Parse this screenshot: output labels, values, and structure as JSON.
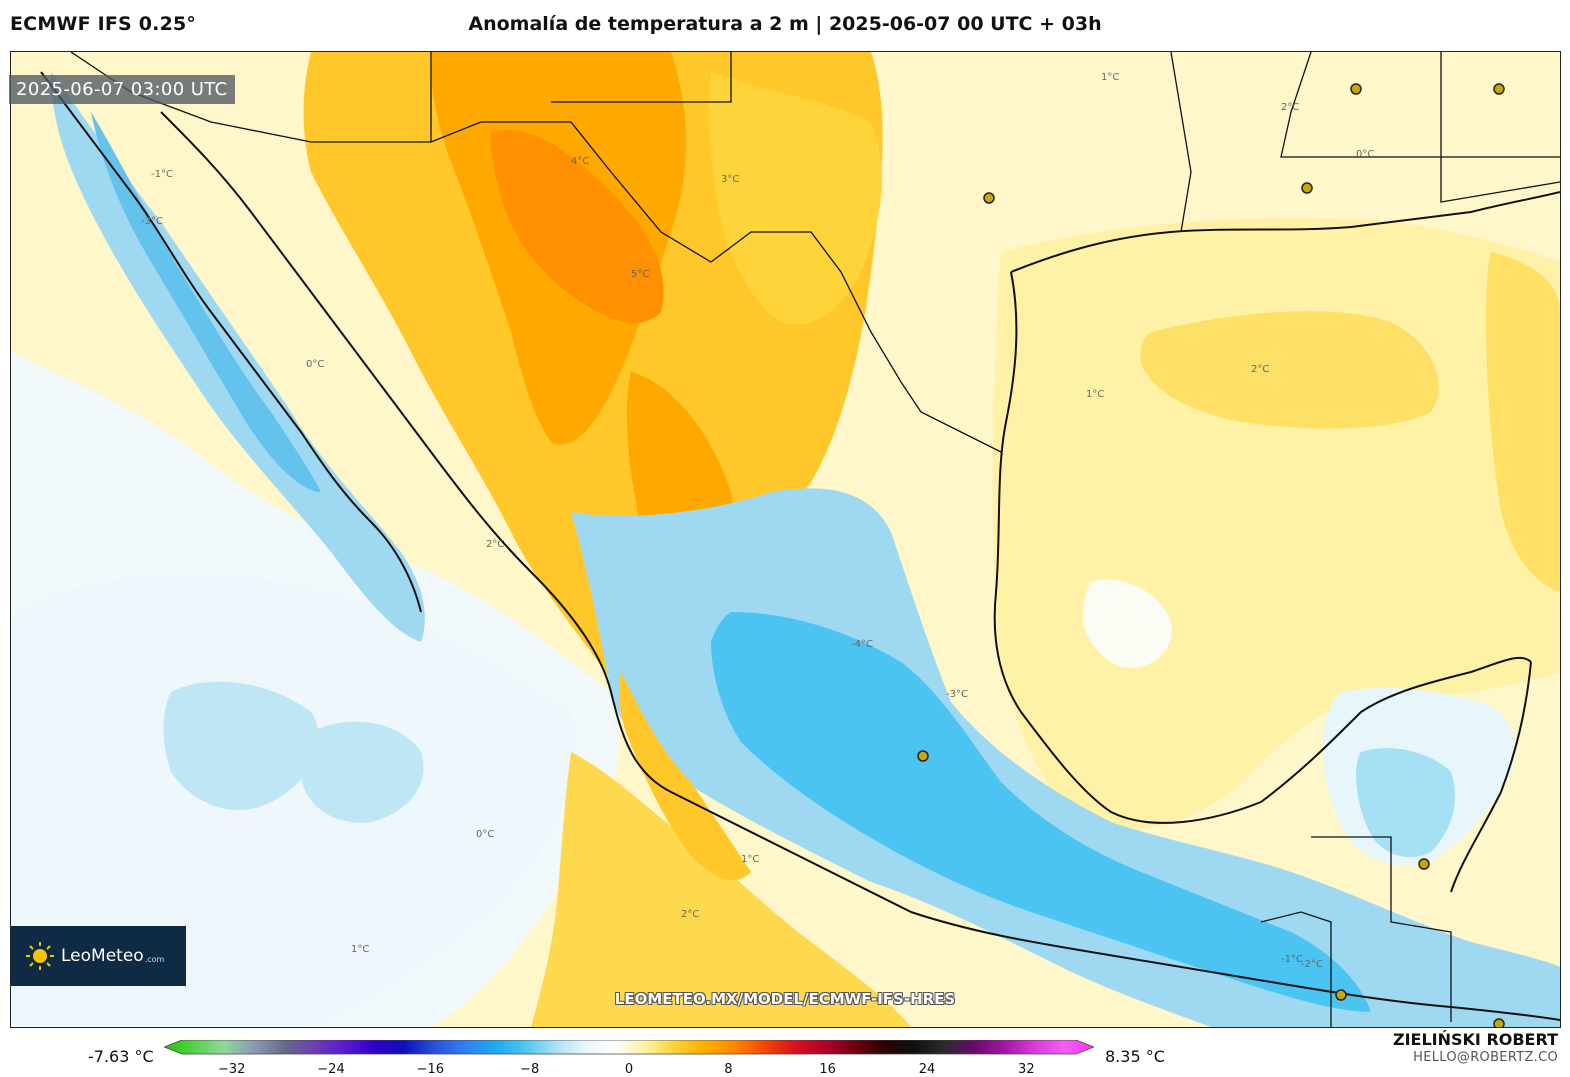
{
  "header": {
    "model": "ECMWF IFS 0.25°",
    "title": "Anomalía de temperatura a 2 m | 2025-06-07 00 UTC + 03h"
  },
  "map": {
    "timestamp": "2025-06-07 03:00 UTC",
    "contour_labels": [
      "2°C",
      "1°C",
      "0°C",
      "-1°C",
      "-3°C",
      "4°C",
      "5°C",
      "3°C",
      "2°C",
      "1°C",
      "0°C",
      "-2°C",
      "-3°C",
      "-4°C",
      "1°C",
      "2°C",
      "0°C",
      "-1°C",
      "2°C",
      "1°C"
    ],
    "watermark": "LEOMETEO.MX/MODEL/ECMWF-IFS-HRES"
  },
  "logo": {
    "name": "LeoMeteo",
    "suffix": ".com"
  },
  "legend": {
    "min_label": "-7.63 °C",
    "max_label": "8.35 °C",
    "ticks": [
      "−32",
      "−24",
      "−16",
      "−8",
      "0",
      "8",
      "16",
      "24",
      "32"
    ],
    "tick_values": [
      -32,
      -24,
      -16,
      -8,
      0,
      8,
      16,
      24,
      32
    ],
    "range": [
      -36,
      36
    ],
    "colors": [
      "#22c20a",
      "#58d04a",
      "#8fd79c",
      "#8c9bb5",
      "#666a8c",
      "#6b3fb0",
      "#5a1bd0",
      "#3000c6",
      "#0c10b8",
      "#2a50d8",
      "#2e7ff0",
      "#20a8f0",
      "#4cc4f2",
      "#a6e0f4",
      "#e6f6fb",
      "#ffffff",
      "#fff2a8",
      "#ffd23a",
      "#ffb000",
      "#ff8800",
      "#f04a00",
      "#d8141c",
      "#b0002a",
      "#700010",
      "#2a0000",
      "#101010",
      "#2a2a2a",
      "#6a0a6a",
      "#a018a0",
      "#d83ad8",
      "#f060f0",
      "#ff30ff"
    ]
  },
  "credits": {
    "author": "ZIELIŃSKI ROBERT",
    "email": "HELLO@ROBERTZ.CO"
  }
}
